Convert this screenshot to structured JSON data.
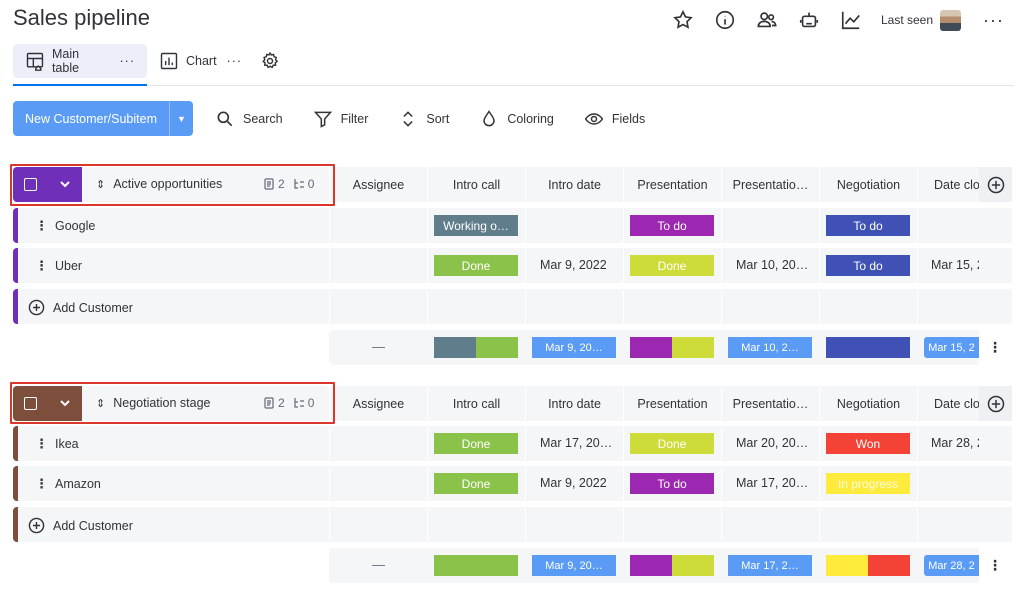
{
  "app": {
    "title": "Sales pipeline",
    "last_seen_label": "Last seen",
    "more": "···"
  },
  "icons": {
    "star": "star-icon",
    "info": "info-icon",
    "people": "people-icon",
    "robot": "robot-icon",
    "activity": "activity-icon"
  },
  "tabs": [
    {
      "label": "Main table",
      "more": "···"
    },
    {
      "label": "Chart",
      "more": "···"
    }
  ],
  "toolbar": {
    "new_label": "New Customer/Subitem",
    "search": "Search",
    "filter": "Filter",
    "sort": "Sort",
    "coloring": "Coloring",
    "fields": "Fields"
  },
  "columns": [
    "Assignee",
    "Intro call",
    "Intro date",
    "Presentation",
    "Presentatio…",
    "Negotiation",
    "Date clo"
  ],
  "colors": {
    "working_on_it": "#5f7d8b",
    "done": "#8bc34a",
    "to_do_purple": "#9c27b0",
    "done_yellow": "#cddc39",
    "to_do_indigo": "#3f51b5",
    "won": "#f44336",
    "in_progress": "#ffeb3b",
    "date_blue": "#5a9bf5"
  },
  "groups": [
    {
      "name": "Active opportunities",
      "color": "#6f2fb9",
      "items_count": "2",
      "subitems_count": "0",
      "rows": [
        {
          "name": "Google",
          "intro_call": "Working o…",
          "intro_date": "",
          "presentation": "To do",
          "presentation_date": "",
          "negotiation": "To do",
          "date_closed": ""
        },
        {
          "name": "Uber",
          "intro_call": "Done",
          "intro_date": "Mar 9, 2022",
          "presentation": "Done",
          "presentation_date": "Mar 10, 20…",
          "negotiation": "To do",
          "date_closed": "Mar 15, 2"
        }
      ],
      "add_label": "Add Customer",
      "summary": {
        "assignee": "—",
        "intro_date": "Mar 9, 20…",
        "presentation_date": "Mar 10, 2…",
        "date_closed": "Mar 15, 2"
      }
    },
    {
      "name": "Negotiation stage",
      "color": "#7d4e3c",
      "items_count": "2",
      "subitems_count": "0",
      "rows": [
        {
          "name": "Ikea",
          "intro_call": "Done",
          "intro_date": "Mar 17, 20…",
          "presentation": "Done",
          "presentation_date": "Mar 20, 20…",
          "negotiation": "Won",
          "date_closed": "Mar 28, 2"
        },
        {
          "name": "Amazon",
          "intro_call": "Done",
          "intro_date": "Mar 9, 2022",
          "presentation": "To do",
          "presentation_date": "Mar 17, 20…",
          "negotiation": "In progress",
          "date_closed": ""
        }
      ],
      "add_label": "Add Customer",
      "summary": {
        "assignee": "—",
        "intro_date": "Mar 9, 20…",
        "presentation_date": "Mar 17, 2…",
        "date_closed": "Mar 28, 2"
      }
    }
  ]
}
